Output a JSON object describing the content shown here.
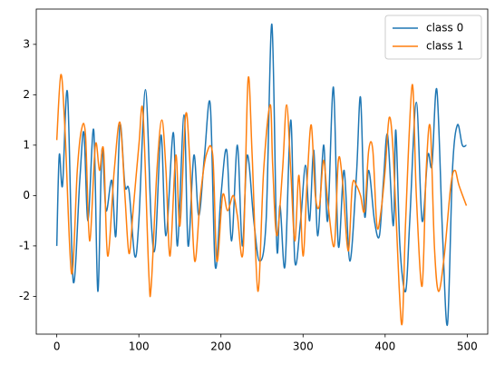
{
  "chart_data": {
    "type": "line",
    "legend": "upper right",
    "xlim": [
      -25,
      525
    ],
    "ylim": [
      -2.75,
      3.7
    ],
    "xticks": [
      0,
      100,
      200,
      300,
      400,
      500
    ],
    "yticks": [
      -2,
      -1,
      0,
      1,
      2,
      3
    ],
    "series": [
      {
        "name": "class 0",
        "color": "#1f77b4",
        "x": [
          0,
          3,
          7,
          13,
          20,
          28,
          33,
          38,
          45,
          50,
          55,
          60,
          67,
          72,
          77,
          83,
          88,
          95,
          100,
          108,
          115,
          120,
          127,
          133,
          142,
          147,
          155,
          160,
          167,
          173,
          180,
          187,
          193,
          200,
          207,
          213,
          220,
          226,
          232,
          240,
          247,
          255,
          262,
          268,
          272,
          278,
          285,
          290,
          297,
          303,
          308,
          313,
          318,
          325,
          330,
          337,
          343,
          350,
          357,
          365,
          370,
          375,
          380,
          387,
          393,
          398,
          403,
          410,
          413,
          418,
          425,
          430,
          438,
          445,
          452,
          457,
          463,
          470,
          476,
          482,
          488,
          494,
          499
        ],
        "values": [
          -1,
          0.8,
          0.2,
          2.05,
          -1.7,
          0.3,
          1.25,
          -0.5,
          1.3,
          -1.9,
          0.9,
          -0.3,
          0.3,
          -0.8,
          1.4,
          0.2,
          0.1,
          -1.2,
          -0.5,
          2.1,
          -0.5,
          -1.0,
          1.2,
          -0.8,
          1.25,
          -1.0,
          1.6,
          -1.0,
          0.8,
          -0.4,
          0.8,
          1.8,
          -1.4,
          0,
          0.9,
          -0.9,
          1.0,
          -1.0,
          0.8,
          -0.5,
          -1.3,
          -0.5,
          3.4,
          -1.0,
          -0.2,
          -1.4,
          1.5,
          -1.3,
          -0.5,
          0.6,
          -0.5,
          0.9,
          -0.8,
          1.0,
          -0.5,
          2.15,
          -1.0,
          0.5,
          -1.3,
          0.4,
          1.95,
          -0.4,
          0.5,
          -0.5,
          -0.8,
          0.3,
          1.2,
          -0.6,
          1.3,
          -1.0,
          -1.9,
          -0.5,
          1.85,
          -0.5,
          0.8,
          0.6,
          2.1,
          -0.8,
          -2.55,
          0.5,
          1.4,
          1.0,
          1.0
        ]
      },
      {
        "name": "class 1",
        "color": "#ff7f0e",
        "x": [
          0,
          5,
          10,
          18,
          25,
          30,
          35,
          40,
          47,
          52,
          57,
          62,
          70,
          77,
          83,
          88,
          93,
          100,
          105,
          112,
          115,
          122,
          128,
          133,
          138,
          145,
          150,
          157,
          162,
          168,
          175,
          182,
          190,
          195,
          202,
          208,
          215,
          220,
          227,
          233,
          238,
          245,
          252,
          260,
          263,
          268,
          275,
          280,
          285,
          290,
          295,
          300,
          305,
          310,
          315,
          320,
          325,
          330,
          338,
          343,
          348,
          355,
          360,
          365,
          370,
          375,
          380,
          385,
          390,
          395,
          400,
          405,
          410,
          417,
          421,
          425,
          433,
          438,
          445,
          450,
          455,
          460,
          465,
          472,
          480,
          485,
          490,
          499
        ],
        "values": [
          1.1,
          2.4,
          1.3,
          -1.55,
          0.5,
          1.3,
          1.2,
          -0.9,
          1.0,
          0.5,
          0.9,
          -1.2,
          0.5,
          1.45,
          0,
          -1.15,
          -0.3,
          1.0,
          1.65,
          -1.5,
          -1.8,
          0.5,
          1.5,
          0.5,
          -1.2,
          0.8,
          -0.6,
          1.6,
          0.7,
          -1.3,
          0,
          0.8,
          0.8,
          -1.3,
          0,
          -0.3,
          0,
          -0.4,
          -1.1,
          2.3,
          0.8,
          -1.9,
          0.5,
          1.8,
          0.6,
          -0.8,
          0.5,
          1.8,
          0.5,
          -0.9,
          0.4,
          -1.2,
          0.3,
          1.4,
          0.0,
          -0.2,
          0.7,
          -0.1,
          -1.0,
          0.7,
          0.3,
          -1.1,
          0.2,
          0.2,
          0,
          -0.3,
          0.9,
          0.9,
          -0.6,
          -0.3,
          0.5,
          1.55,
          0.8,
          -1.8,
          -2.5,
          -0.5,
          2.2,
          0,
          -1.8,
          0.5,
          1.35,
          -1.0,
          -1.9,
          -1.2,
          0.2,
          0.5,
          0.2,
          -0.2
        ]
      }
    ]
  }
}
